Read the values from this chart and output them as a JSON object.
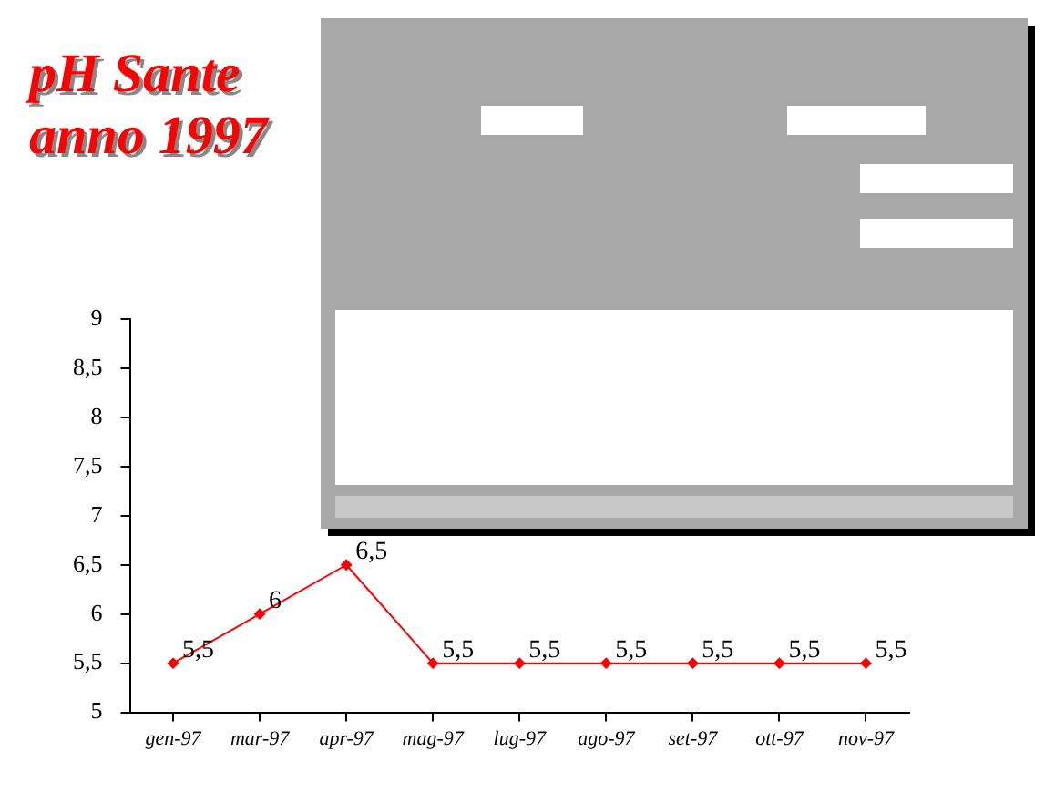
{
  "chart_data": {
    "type": "line",
    "title": "pH  Sante\nanno 1997",
    "categories": [
      "gen-97",
      "mar-97",
      "apr-97",
      "mag-97",
      "lug-97",
      "ago-97",
      "set-97",
      "ott-97",
      "nov-97"
    ],
    "series": [
      {
        "color": "#ff0000",
        "values": [
          5.5,
          6,
          6.5,
          5.5,
          5.5,
          5.5,
          5.5,
          5.5,
          5.5
        ],
        "value_labels": [
          "5,5",
          "6",
          "6,5",
          "5,5",
          "5,5",
          "5,5",
          "5,5",
          "5,5",
          "5,5"
        ]
      }
    ],
    "ylim": [
      5,
      9
    ],
    "yticks": [
      5,
      {
        "value": 5.5,
        "label": "5,5"
      },
      6,
      {
        "value": 6.5,
        "label": "6,5"
      },
      7,
      {
        "value": 7.5,
        "label": "7,5"
      },
      8,
      {
        "value": 8.5,
        "label": "8,5"
      },
      9
    ],
    "legend": false,
    "marker": "diamond",
    "line_style": "solid"
  }
}
